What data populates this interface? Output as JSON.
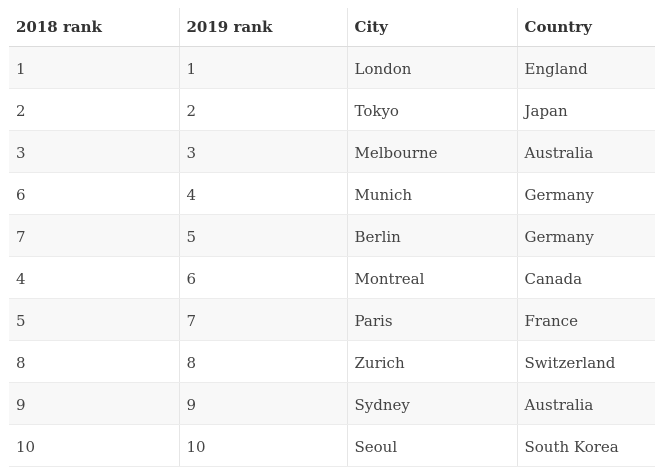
{
  "table": {
    "headers": [
      "2018 rank",
      "2019 rank",
      "City",
      "Country"
    ],
    "rows": [
      [
        "1",
        "1",
        "London",
        "England"
      ],
      [
        "2",
        "2",
        "Tokyo",
        "Japan"
      ],
      [
        "3",
        "3",
        "Melbourne",
        "Australia"
      ],
      [
        "6",
        "4",
        "Munich",
        "Germany"
      ],
      [
        "7",
        "5",
        "Berlin",
        "Germany"
      ],
      [
        "4",
        "6",
        "Montreal",
        "Canada"
      ],
      [
        "5",
        "7",
        "Paris",
        "France"
      ],
      [
        "8",
        "8",
        "Zurich",
        "Switzerland"
      ],
      [
        "9",
        "9",
        "Sydney",
        "Australia"
      ],
      [
        "10",
        "10",
        "Seoul",
        "South Korea"
      ]
    ]
  }
}
